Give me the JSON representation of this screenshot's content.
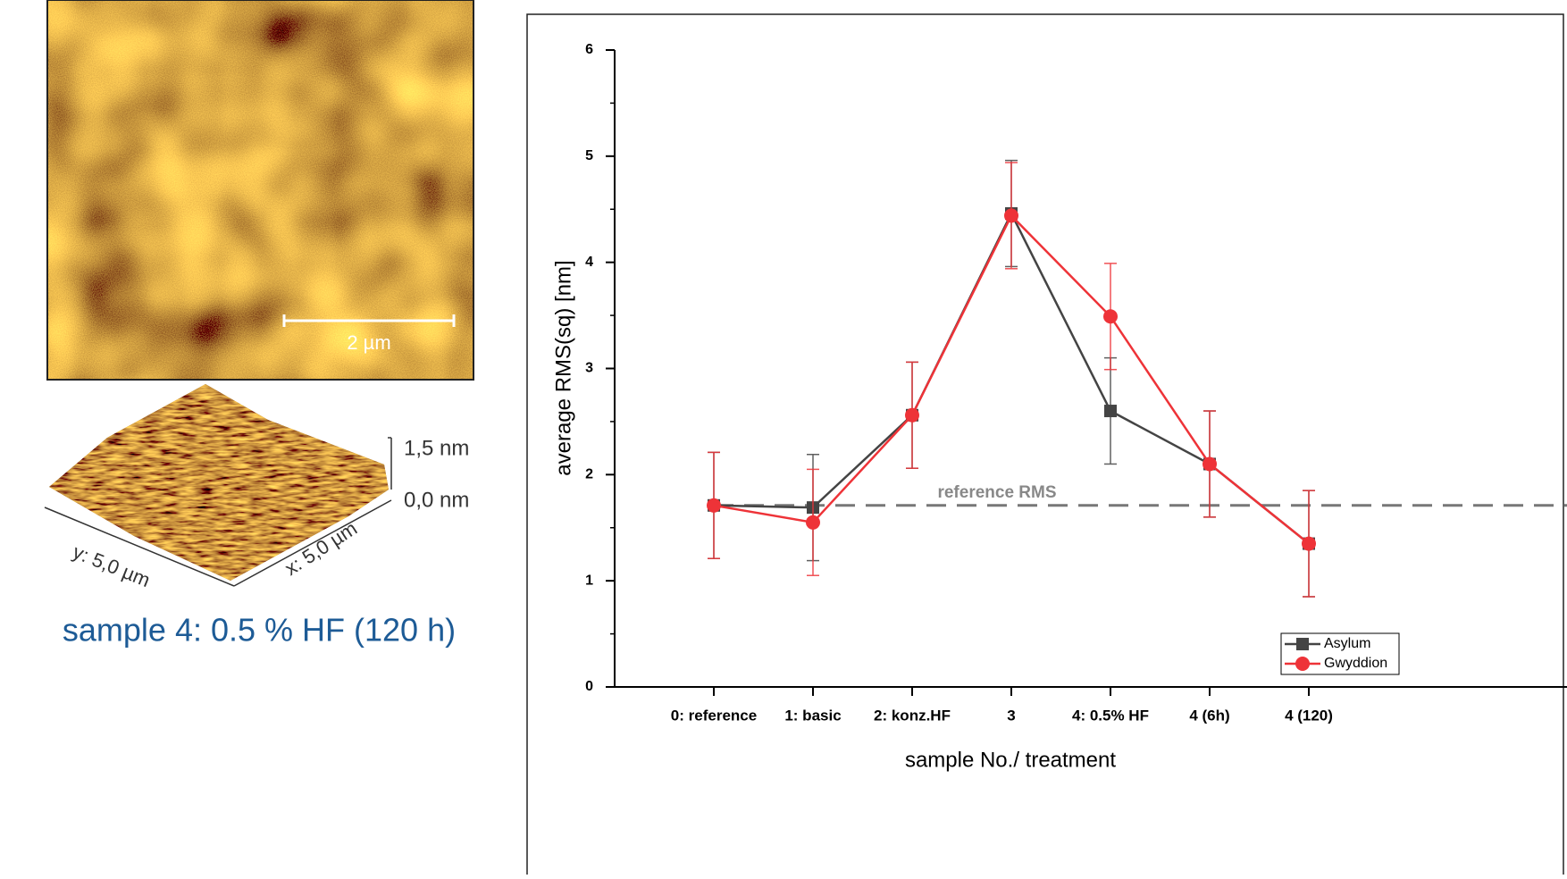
{
  "afm": {
    "scale_bar": "2 µm",
    "z_max": "1,5 nm",
    "z_min": "0,0 nm",
    "y_extent": "y: 5,0 µm",
    "x_extent": "x: 5,0 µm",
    "caption": "sample 4: 0.5 % HF (120 h)"
  },
  "chart_data": {
    "type": "line",
    "x_label": "sample No./ treatment",
    "y_label": "average RMS(sq) [nm]",
    "categories": [
      "0: reference",
      "1: basic",
      "2: konz.HF",
      "3",
      "4: 0.5% HF",
      "4 (6h)",
      "4 (120)"
    ],
    "series": [
      {
        "name": "Asylum",
        "color": "#444444",
        "marker": "square",
        "values": [
          1.71,
          1.69,
          2.56,
          4.46,
          2.6,
          2.1,
          1.35
        ],
        "errors": [
          0.5,
          0.5,
          0.5,
          0.5,
          0.5,
          0.5,
          0.5
        ]
      },
      {
        "name": "Gwyddion",
        "color": "#ee3338",
        "marker": "circle",
        "values": [
          1.71,
          1.55,
          2.56,
          4.44,
          3.49,
          2.1,
          1.35
        ],
        "errors": [
          0.5,
          0.5,
          0.5,
          0.5,
          0.5,
          0.5,
          0.5
        ]
      }
    ],
    "reference_line": {
      "value": 1.71,
      "label": "reference RMS"
    },
    "ylim": [
      0,
      6
    ],
    "yticks": [
      0,
      1,
      2,
      3,
      4,
      5,
      6
    ],
    "legend": "lower right"
  }
}
